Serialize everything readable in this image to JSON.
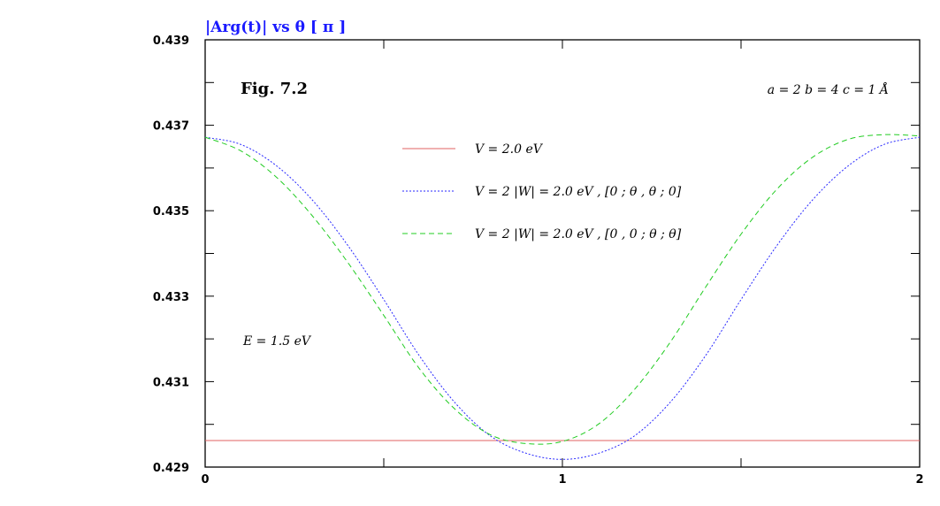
{
  "chart_data": {
    "type": "line",
    "title": "Fig. 7.2",
    "ylabel": "|Arg(t)| vs θ [ π ]",
    "xlabel": "",
    "xlim": [
      0,
      2
    ],
    "ylim": [
      0.429,
      0.439
    ],
    "x_ticks": [
      "0",
      "1",
      "2"
    ],
    "y_ticks": [
      "0.429",
      "0.431",
      "0.433",
      "0.435",
      "0.437",
      "0.439"
    ],
    "annotations": {
      "top_right": "a = 2 b = 4 c = 1 Å",
      "left": "E = 1.5 eV"
    },
    "legend_position": "upper-center",
    "series": [
      {
        "name": "V = 2.0 eV",
        "color": "#e06060",
        "dash": "solid",
        "x": [
          0,
          0.25,
          0.5,
          0.75,
          1,
          1.25,
          1.5,
          1.75,
          2
        ],
        "y": [
          0.42962,
          0.42962,
          0.42962,
          0.42962,
          0.42962,
          0.42962,
          0.42962,
          0.42962,
          0.42962
        ]
      },
      {
        "name": "V = 2 |W| = 2.0 eV ,   [0 ; θ , θ ; 0]",
        "color": "#2a2aff",
        "dash": "dotted",
        "x": [
          0,
          0.1,
          0.2,
          0.3,
          0.4,
          0.5,
          0.6,
          0.7,
          0.8,
          0.9,
          1.0,
          1.1,
          1.2,
          1.3,
          1.4,
          1.5,
          1.6,
          1.7,
          1.8,
          1.9,
          2.0
        ],
        "y": [
          0.43672,
          0.43655,
          0.43605,
          0.43525,
          0.43418,
          0.43292,
          0.4316,
          0.4305,
          0.42972,
          0.42932,
          0.42918,
          0.42932,
          0.42972,
          0.4305,
          0.4316,
          0.43292,
          0.43418,
          0.43525,
          0.43605,
          0.43655,
          0.43672
        ]
      },
      {
        "name": "V = 2 |W| = 2.0 eV ,   [0 , 0 ; θ ; θ]",
        "color": "#22cc22",
        "dash": "dashed",
        "x": [
          0,
          0.1,
          0.2,
          0.3,
          0.4,
          0.5,
          0.6,
          0.7,
          0.8,
          0.9,
          1.0,
          1.1,
          1.2,
          1.3,
          1.4,
          1.5,
          1.6,
          1.7,
          1.8,
          1.9,
          2.0
        ],
        "y": [
          0.43672,
          0.4364,
          0.43578,
          0.43488,
          0.43378,
          0.43255,
          0.4313,
          0.43035,
          0.42975,
          0.42955,
          0.4296,
          0.43,
          0.4308,
          0.4319,
          0.4332,
          0.43445,
          0.4355,
          0.43625,
          0.43667,
          0.43678,
          0.43675
        ]
      }
    ]
  }
}
